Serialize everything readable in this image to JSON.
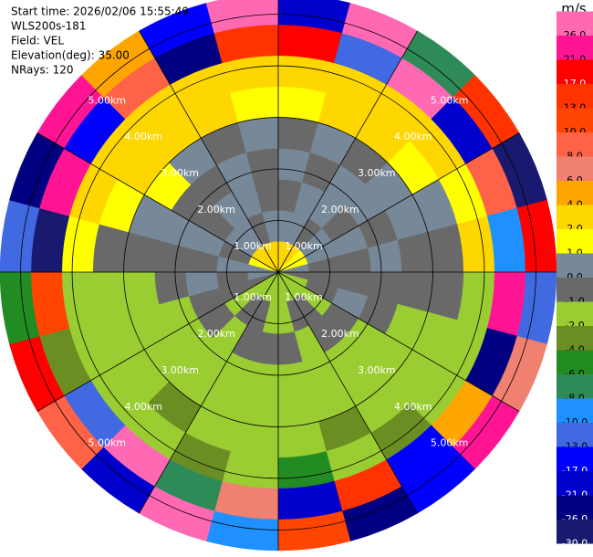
{
  "chart_data": {
    "type": "ppi",
    "info": [
      "Start time: 2026/02/06 15:55:49",
      "WLS200s-181",
      "Field: VEL",
      "Elevation(deg): 35.00",
      "NRays: 120"
    ],
    "colorbar": {
      "title": "m/s",
      "levels": [
        {
          "value": 26,
          "label": "26.0"
        },
        {
          "value": 21,
          "label": "21.0"
        },
        {
          "value": 17,
          "label": "17.0"
        },
        {
          "value": 13,
          "label": "13.0"
        },
        {
          "value": 10,
          "label": "10.0"
        },
        {
          "value": 8,
          "label": "8.0"
        },
        {
          "value": 6,
          "label": "6.0"
        },
        {
          "value": 4,
          "label": "4.0"
        },
        {
          "value": 2,
          "label": "2.0"
        },
        {
          "value": 1,
          "label": "1.0"
        },
        {
          "value": 0,
          "label": "0.0"
        },
        {
          "value": -1,
          "label": "-1.0"
        },
        {
          "value": -2,
          "label": "-2.0"
        },
        {
          "value": -4,
          "label": "-4.0"
        },
        {
          "value": -6,
          "label": "-6.0"
        },
        {
          "value": -8,
          "label": "-8.0"
        },
        {
          "value": -10,
          "label": "-10.0"
        },
        {
          "value": -13,
          "label": "-13.0"
        },
        {
          "value": -17,
          "label": "-17.0"
        },
        {
          "value": -21,
          "label": "-21.0"
        },
        {
          "value": -26,
          "label": "-26.0"
        },
        {
          "value": -30,
          "label": "-30.0"
        }
      ],
      "colors": [
        "#ff69b4",
        "#ff1493",
        "#ff0000",
        "#ff3300",
        "#ff4500",
        "#ff6347",
        "#f08070",
        "#ffa500",
        "#ffd700",
        "#ffff00",
        "#778899",
        "#696969",
        "#9acd32",
        "#6b8e23",
        "#228b22",
        "#2e8b57",
        "#1e90ff",
        "#4169e1",
        "#0000ff",
        "#0000cd",
        "#000080",
        "#191970"
      ]
    },
    "range_rings": [
      {
        "value": 1,
        "label": "1.00km"
      },
      {
        "value": 2,
        "label": "2.00km"
      },
      {
        "value": 3,
        "label": "3.00km"
      },
      {
        "value": 4,
        "label": "4.00km"
      },
      {
        "value": 5,
        "label": "5.00km"
      }
    ],
    "azimuths": [
      0,
      15,
      30,
      45,
      60,
      75,
      90,
      105,
      120,
      135,
      150,
      165,
      180,
      195,
      210,
      225,
      240,
      255,
      270,
      285,
      300,
      315,
      330,
      345
    ],
    "gates": [
      0,
      0.6,
      1.2,
      1.8,
      2.4,
      3.0,
      3.6,
      4.2,
      4.8,
      5.4
    ],
    "values": [
      [
        2,
        2,
        2,
        1,
        1,
        0,
        -1,
        -2,
        -2,
        -2,
        -2,
        -2,
        -2,
        -2,
        -2,
        -2,
        -1,
        0,
        0,
        1,
        2,
        2,
        2,
        2
      ],
      [
        0,
        0,
        -1,
        0,
        0,
        -1,
        -1,
        -1,
        -2,
        -1,
        -1,
        -2,
        -2,
        -1,
        -1,
        -2,
        -1,
        -1,
        0,
        -1,
        0,
        0,
        -1,
        0
      ],
      [
        -1,
        0,
        0,
        -1,
        0,
        -1,
        -1,
        0,
        -1,
        -1,
        -2,
        -1,
        -1,
        -1,
        -2,
        -1,
        -1,
        0,
        -1,
        0,
        -1,
        0,
        0,
        -1
      ],
      [
        0,
        -1,
        0,
        0,
        -1,
        0,
        -1,
        -1,
        -2,
        -2,
        -2,
        -2,
        -2,
        -2,
        -2,
        -2,
        -2,
        -1,
        -1,
        0,
        -1,
        -1,
        0,
        -1
      ],
      [
        -1,
        0,
        -1,
        0,
        0,
        -1,
        -1,
        -2,
        -2,
        -2,
        -2,
        -2,
        -2,
        -2,
        -2,
        -2,
        -2,
        -2,
        -1,
        0,
        1,
        0,
        -1,
        0
      ],
      [
        1,
        2,
        2,
        1,
        0,
        -1,
        -1,
        -2,
        -2,
        -2,
        -4,
        -2,
        -2,
        -2,
        -4,
        -2,
        -2,
        -2,
        -1,
        1,
        2,
        2,
        2,
        1
      ],
      [
        2,
        2,
        2,
        2,
        1,
        2,
        -2,
        -2,
        -2,
        -4,
        -2,
        -6,
        -2,
        -4,
        -2,
        -2,
        -2,
        -2,
        1,
        2,
        2,
        2,
        2,
        2
      ],
      [
        17,
        -13,
        26,
        -21,
        8,
        -10,
        21,
        -26,
        4,
        -17,
        13,
        -21,
        6,
        -8,
        26,
        -13,
        -4,
        10,
        -30,
        21,
        -17,
        8,
        -26,
        13
      ],
      [
        -21,
        26,
        -8,
        13,
        -30,
        17,
        -13,
        6,
        21,
        -17,
        -26,
        10,
        -10,
        26,
        -21,
        8,
        17,
        -6,
        -13,
        -26,
        21,
        4,
        -17,
        26
      ]
    ]
  }
}
